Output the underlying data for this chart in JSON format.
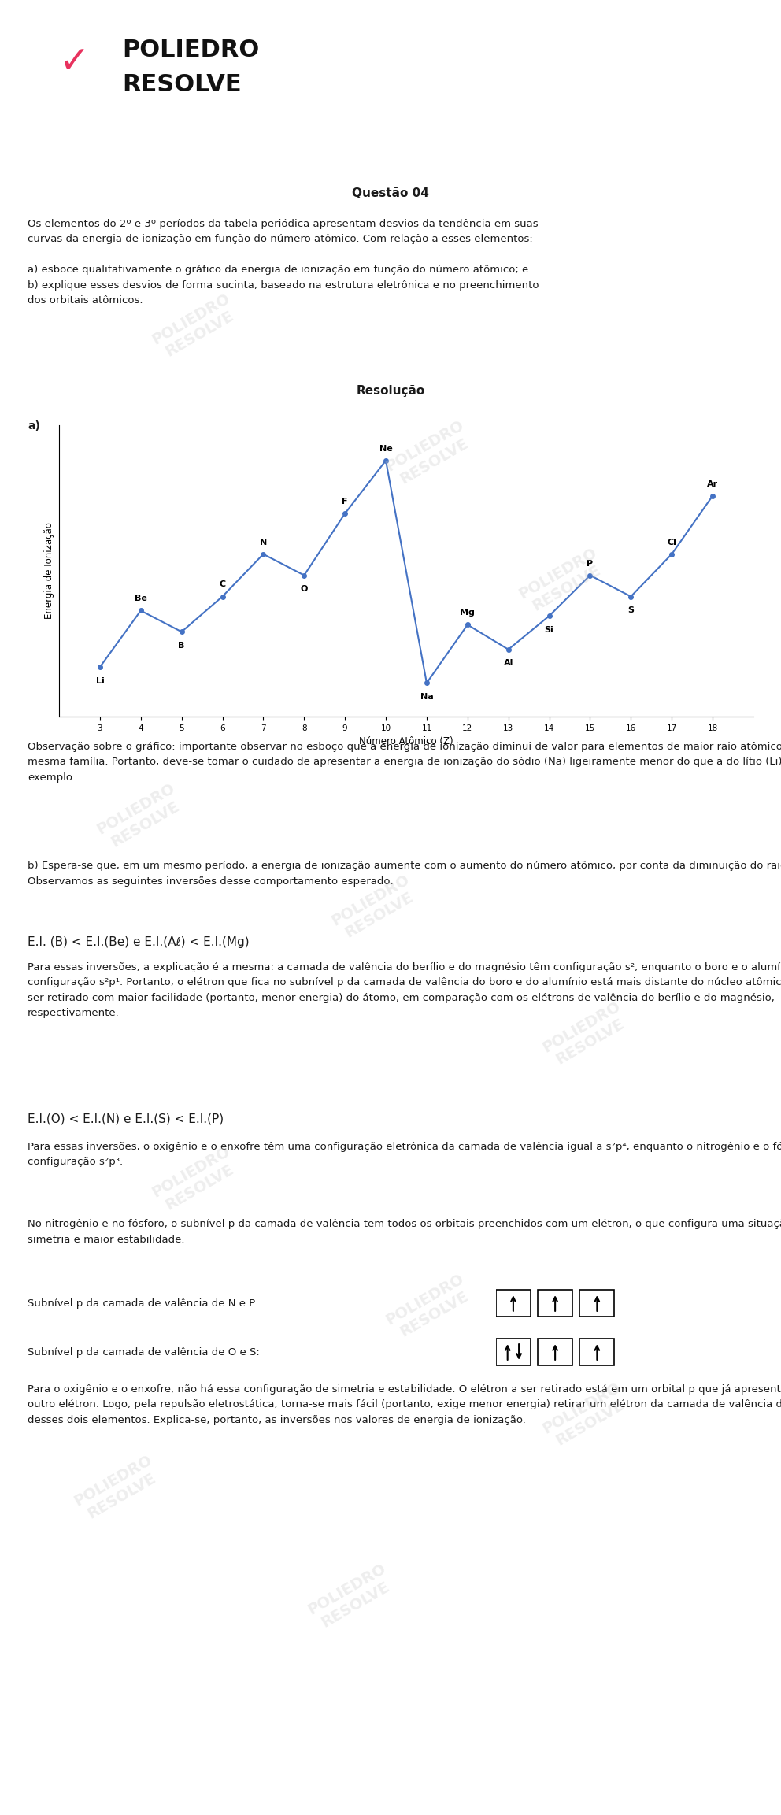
{
  "header_bg": "#2BBCD0",
  "body_bg": "#ffffff",
  "section_bg": "#e2e2e2",
  "text_color": "#1a1a1a",
  "title_questao": "Questão 04",
  "resolucao_title": "Resolução",
  "graph_elements": [
    "Li",
    "Be",
    "B",
    "C",
    "N",
    "O",
    "F",
    "Ne",
    "Na",
    "Mg",
    "Al",
    "Si",
    "P",
    "S",
    "Cl",
    "Ar"
  ],
  "graph_z": [
    3,
    4,
    5,
    6,
    7,
    8,
    9,
    10,
    11,
    12,
    13,
    14,
    15,
    16,
    17,
    18
  ],
  "graph_y": [
    1.8,
    5.0,
    3.8,
    5.8,
    8.2,
    7.0,
    10.5,
    13.5,
    0.9,
    4.2,
    2.8,
    4.7,
    7.0,
    5.8,
    8.2,
    11.5
  ],
  "graph_line_color": "#4472C4",
  "graph_xlabel": "Número Atômico (Z)",
  "graph_ylabel": "Energia de Ionização",
  "graph_xticks": [
    3,
    4,
    5,
    6,
    7,
    8,
    9,
    10,
    11,
    12,
    13,
    14,
    15,
    16,
    17,
    18
  ],
  "label_offsets": {
    "Li": [
      0,
      -0.55,
      "top"
    ],
    "Be": [
      0,
      0.45,
      "bottom"
    ],
    "B": [
      0,
      -0.55,
      "top"
    ],
    "C": [
      0,
      0.45,
      "bottom"
    ],
    "N": [
      0,
      0.45,
      "bottom"
    ],
    "O": [
      0,
      -0.55,
      "top"
    ],
    "F": [
      0,
      0.45,
      "bottom"
    ],
    "Ne": [
      0,
      0.45,
      "bottom"
    ],
    "Na": [
      0,
      -0.55,
      "top"
    ],
    "Mg": [
      0,
      0.45,
      "bottom"
    ],
    "Al": [
      0,
      -0.55,
      "top"
    ],
    "Si": [
      0,
      -0.55,
      "top"
    ],
    "P": [
      0,
      0.45,
      "bottom"
    ],
    "S": [
      0,
      -0.55,
      "top"
    ],
    "Cl": [
      0,
      0.45,
      "bottom"
    ],
    "Ar": [
      0,
      0.45,
      "bottom"
    ]
  },
  "questao_text1": "Os elementos do 2º e 3º períodos da tabela periódica apresentam desvios da tendência em suas",
  "questao_text2": "curvas da energia de ionização em função do número atômico. Com relação a esses elementos:",
  "questao_text3": "a) esboce qualitativamente o gráfico da energia de ionização em função do número atômico; e",
  "questao_text4": "b) explique esses desvios de forma sucinta, baseado na estrutura eletrônica e no preenchimento",
  "questao_text5": "dos orbitais atômicos.",
  "obs_line1": "Observação sobre o gráfico: importante observar no esboço que a energia de ionização diminui de valor para elementos de maior raio atômico em uma",
  "obs_line2": "mesma família. Portanto, deve-se tomar o cuidado de apresentar a energia de ionização do sódio (Na) ligeiramente menor do que a do lítio (Li), por",
  "obs_line3": "exemplo.",
  "partb_line1": "b) Espera-se que, em um mesmo período, a energia de ionização aumente com o aumento do número atômico, por conta da diminuição do raio atômico.",
  "partb_line2": "Observamos as seguintes inversões desse comportamento esperado:",
  "inv1": "E.I. (B) < E.I.(Be) e E.I.(Aℓ) < E.I.(Mg)",
  "exp1_line1": "Para essas inversões, a explicação é a mesma: a camada de valência do berílio e do magnésio têm configuração s², enquanto o boro e o alumínio têm",
  "exp1_line2": "configuração s²p¹. Portanto, o elétron que fica no subnível p da camada de valência do boro e do alumínio está mais distante do núcleo atômico e pode",
  "exp1_line3": "ser retirado com maior facilidade (portanto, menor energia) do átomo, em comparação com os elétrons de valência do berílio e do magnésio,",
  "exp1_line4": "respectivamente.",
  "inv2": "E.I.(O) < E.I.(N) e E.I.(S) < E.I.(P)",
  "exp2_line1": "Para essas inversões, o oxigênio e o enxofre têm uma configuração eletrônica da camada de valência igual a s²p⁴, enquanto o nitrogênio e o fósforo têm",
  "exp2_line2": "configuração s²p³.",
  "nit_line1": "No nitrogênio e no fósforo, o subnível p da camada de valência tem todos os orbitais preenchidos com um elétron, o que configura uma situação de",
  "nit_line2": "simetria e maior estabilidade.",
  "sublevel_np": "Subnível p da camada de valência de N e P:",
  "sublevel_os": "Subnível p da camada de valência de O e S:",
  "final_line1": "Para o oxigênio e o enxofre, não há essa configuração de simetria e estabilidade. O elétron a ser retirado está em um orbital p que já apresenta",
  "final_line2": "outro elétron. Logo, pela repulsão eletrostática, torna-se mais fácil (portanto, exige menor energia) retirar um elétron da camada de valência de átomos",
  "final_line3": "desses dois elementos. Explica-se, portanto, as inversões nos valores de energia de ionização."
}
